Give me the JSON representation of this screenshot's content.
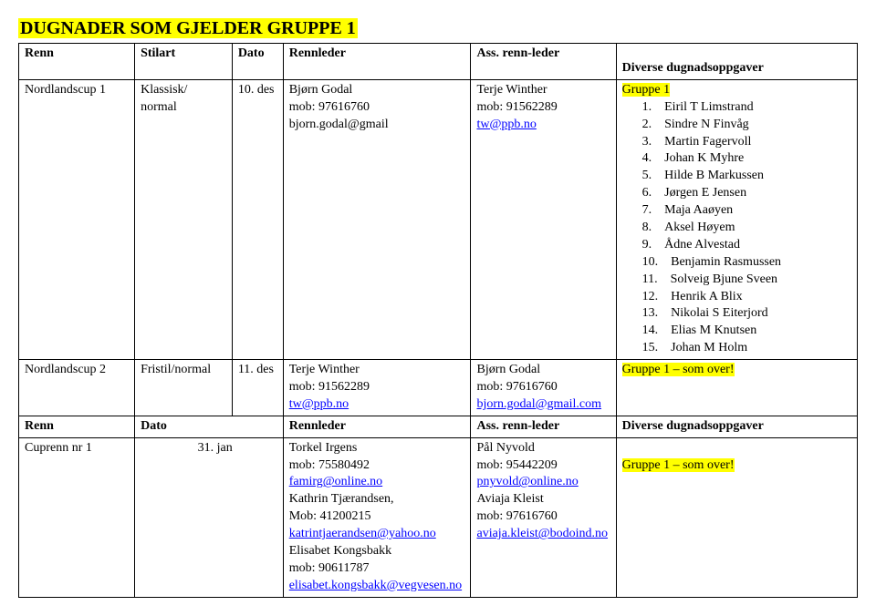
{
  "title": "DUGNADER SOM GJELDER GRUPPE 1",
  "headers1": {
    "renn": "Renn",
    "stilart": "Stilart",
    "dato": "Dato",
    "rennleder": "Rennleder",
    "ass": "Ass. renn-leder",
    "div": "Diverse dugnadsoppgaver"
  },
  "row1": {
    "renn": "Nordlandscup 1",
    "stilart": "Klassisk/ normal",
    "dato": "10. des",
    "leder_name": "Bjørn Godal",
    "leder_mob": "mob: 97616760",
    "leder_mail": "bjorn.godal@gmail",
    "ass_name": "Terje Winther",
    "ass_mob": "mob: 91562289",
    "ass_mail": "tw@ppb.no",
    "group_label": "Gruppe 1",
    "list": [
      "Eiril T Limstrand",
      "Sindre N Finvåg",
      "Martin Fagervoll",
      "Johan K Myhre",
      "Hilde B Markussen",
      "Jørgen E Jensen",
      "Maja Aaøyen",
      "Aksel Høyem",
      "Ådne Alvestad",
      "Benjamin Rasmussen",
      "Solveig Bjune Sveen",
      "Henrik A Blix",
      "Nikolai S Eiterjord",
      "Elias M Knutsen",
      "Johan M Holm"
    ]
  },
  "row2": {
    "renn": "Nordlandscup 2",
    "stilart": "Fristil/normal",
    "dato": "11. des",
    "leder_name": "Terje Winther",
    "leder_mob": "mob: 91562289",
    "leder_mail": "tw@ppb.no",
    "ass_name": "Bjørn Godal",
    "ass_mob": "mob: 97616760",
    "ass_mail": "bjorn.godal@gmail.com",
    "group_label": "Gruppe 1 – som over!"
  },
  "headers2": {
    "renn": "Renn",
    "dato": "Dato",
    "rennleder": "Rennleder",
    "ass": "Ass. renn-leder",
    "div": "Diverse dugnadsoppgaver"
  },
  "row3": {
    "renn": "Cuprenn nr 1",
    "dato": "31. jan",
    "leder1_name": "Torkel Irgens",
    "leder1_mob": "mob: 75580492",
    "leder1_mail": "famirg@online.no",
    "leder2_name": "Kathrin Tjærandsen,",
    "leder2_mob": "Mob: 41200215",
    "leder2_mail": "katrintjaerandsen@yahoo.no",
    "leder3_name": "Elisabet Kongsbakk",
    "leder3_mob": "mob: 90611787",
    "leder3_mail": "elisabet.kongsbakk@vegvesen.no",
    "ass1_name": "Pål Nyvold",
    "ass1_mob": "mob: 95442209",
    "ass1_mail": "pnyvold@online.no",
    "ass2_name": "Aviaja Kleist",
    "ass2_mob": "mob: 97616760",
    "ass2_mail": "aviaja.kleist@bodoind.no",
    "group_label": "Gruppe 1 – som over!"
  }
}
